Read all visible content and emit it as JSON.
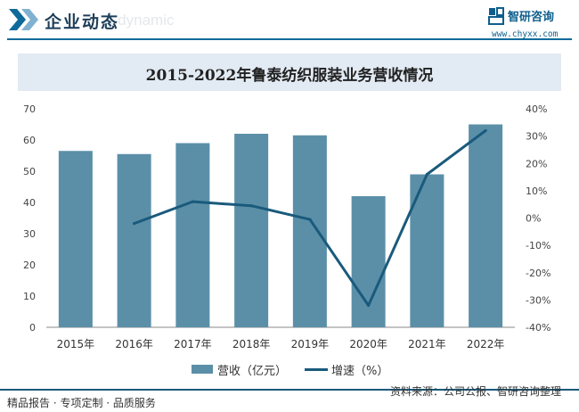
{
  "header": {
    "title": "企业动态",
    "watermark": "e dynamic",
    "logo_name": "智研咨询",
    "logo_url": "www.chyxx.com"
  },
  "footer": {
    "tagline": "精品报告 · 专项定制 · 品质服务",
    "source_label": "资料来源：",
    "source_text": "公司公报、智研咨询整理"
  },
  "colors": {
    "bar": "#5b8fa8",
    "line": "#1a5a7c",
    "accent": "#0e6a9a",
    "title_band": "#e2eaf3"
  },
  "chart_data": {
    "type": "bar",
    "title": "2015-2022年鲁泰纺织服装业务营收情况",
    "categories": [
      "2015年",
      "2016年",
      "2017年",
      "2018年",
      "2019年",
      "2020年",
      "2021年",
      "2022年"
    ],
    "series": [
      {
        "name": "营收（亿元）",
        "type": "bar",
        "axis": "left",
        "values": [
          56.5,
          55.5,
          59,
          62,
          61.5,
          42,
          49,
          65
        ]
      },
      {
        "name": "增速（%）",
        "type": "line",
        "axis": "right",
        "values": [
          null,
          -2,
          6,
          4.5,
          -0.5,
          -32,
          16,
          32
        ]
      }
    ],
    "ylim_left": [
      0,
      70
    ],
    "yticks_left": [
      "0",
      "10",
      "20",
      "30",
      "40",
      "50",
      "60",
      "70"
    ],
    "ylim_right": [
      -40,
      40
    ],
    "yticks_right": [
      "-40%",
      "-30%",
      "-20%",
      "-10%",
      "0%",
      "10%",
      "20%",
      "30%",
      "40%"
    ],
    "legend_position": "bottom",
    "grid": false
  }
}
